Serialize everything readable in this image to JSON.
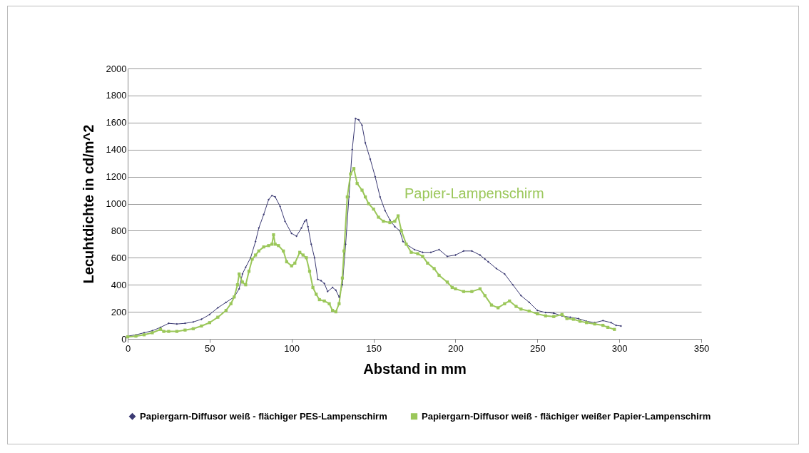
{
  "chart_data": {
    "type": "line",
    "xlabel": "Abstand in mm",
    "ylabel": "Lecuhtdichte in cd/m^2",
    "xlim": [
      0,
      350
    ],
    "xticks": [
      0,
      50,
      100,
      150,
      200,
      250,
      300,
      350
    ],
    "ylim": [
      0,
      2000
    ],
    "yticks": [
      0,
      200,
      400,
      600,
      800,
      1000,
      1200,
      1400,
      1600,
      1800,
      2000
    ],
    "grid": "y",
    "legend": "bottom",
    "annotations": [
      "Papier-Lampenschirm"
    ],
    "series": [
      {
        "name": "Papiergarn-Diffusor weiß - flächiger PES-Lampenschirm",
        "color": "#3b3a73",
        "marker": "diamond",
        "x": [
          0,
          5,
          10,
          15,
          20,
          25,
          30,
          35,
          40,
          45,
          50,
          55,
          60,
          65,
          68,
          70,
          72,
          75,
          78,
          80,
          83,
          86,
          88,
          90,
          93,
          96,
          100,
          103,
          106,
          108,
          109,
          110,
          112,
          114,
          116,
          118,
          120,
          122,
          125,
          127,
          129,
          131,
          133,
          135,
          137,
          139,
          141,
          143,
          145,
          148,
          151,
          154,
          157,
          160,
          163,
          166,
          168,
          170,
          175,
          180,
          185,
          190,
          195,
          200,
          205,
          210,
          215,
          218,
          220,
          225,
          230,
          235,
          240,
          245,
          250,
          255,
          260,
          265,
          270,
          275,
          280,
          285,
          290,
          295,
          298,
          301
        ],
        "values": [
          20,
          30,
          45,
          60,
          85,
          115,
          110,
          115,
          125,
          145,
          180,
          230,
          270,
          310,
          370,
          480,
          530,
          600,
          720,
          820,
          920,
          1030,
          1060,
          1050,
          980,
          870,
          780,
          760,
          820,
          870,
          880,
          830,
          700,
          600,
          440,
          430,
          410,
          350,
          380,
          360,
          310,
          400,
          700,
          1050,
          1400,
          1630,
          1620,
          1580,
          1450,
          1330,
          1200,
          1050,
          950,
          880,
          830,
          800,
          720,
          700,
          660,
          640,
          640,
          660,
          610,
          620,
          650,
          650,
          620,
          590,
          570,
          520,
          480,
          400,
          320,
          270,
          210,
          195,
          190,
          170,
          160,
          150,
          130,
          120,
          135,
          120,
          100,
          95
        ]
      },
      {
        "name": "Papiergarn-Diffusor weiß - flächiger weißer Papier-Lampenschirm",
        "color": "#9bc75a",
        "marker": "square",
        "x": [
          0,
          5,
          10,
          15,
          20,
          22,
          25,
          30,
          35,
          40,
          45,
          50,
          55,
          60,
          63,
          65,
          67,
          68,
          70,
          72,
          74,
          76,
          78,
          80,
          83,
          86,
          88,
          89,
          90,
          92,
          95,
          97,
          100,
          102,
          105,
          107,
          109,
          111,
          113,
          115,
          117,
          120,
          123,
          125,
          127,
          129,
          131,
          132,
          134,
          136,
          138,
          140,
          143,
          145,
          147,
          150,
          153,
          156,
          160,
          163,
          165,
          167,
          170,
          173,
          177,
          180,
          183,
          187,
          190,
          195,
          198,
          200,
          205,
          210,
          215,
          218,
          222,
          226,
          230,
          233,
          237,
          240,
          245,
          250,
          255,
          260,
          265,
          268,
          272,
          276,
          280,
          285,
          290,
          293,
          297
        ],
        "values": [
          15,
          20,
          30,
          45,
          70,
          55,
          55,
          55,
          65,
          75,
          95,
          120,
          160,
          210,
          260,
          310,
          400,
          480,
          420,
          400,
          500,
          590,
          620,
          650,
          680,
          690,
          700,
          770,
          700,
          690,
          650,
          570,
          540,
          560,
          640,
          620,
          600,
          500,
          380,
          330,
          290,
          280,
          260,
          210,
          200,
          260,
          450,
          650,
          1050,
          1220,
          1260,
          1150,
          1100,
          1050,
          1000,
          960,
          900,
          870,
          860,
          870,
          910,
          800,
          700,
          640,
          630,
          610,
          560,
          520,
          470,
          420,
          380,
          370,
          350,
          350,
          370,
          320,
          250,
          230,
          260,
          280,
          240,
          220,
          205,
          185,
          170,
          165,
          180,
          150,
          145,
          130,
          120,
          110,
          100,
          85,
          70
        ]
      }
    ]
  }
}
